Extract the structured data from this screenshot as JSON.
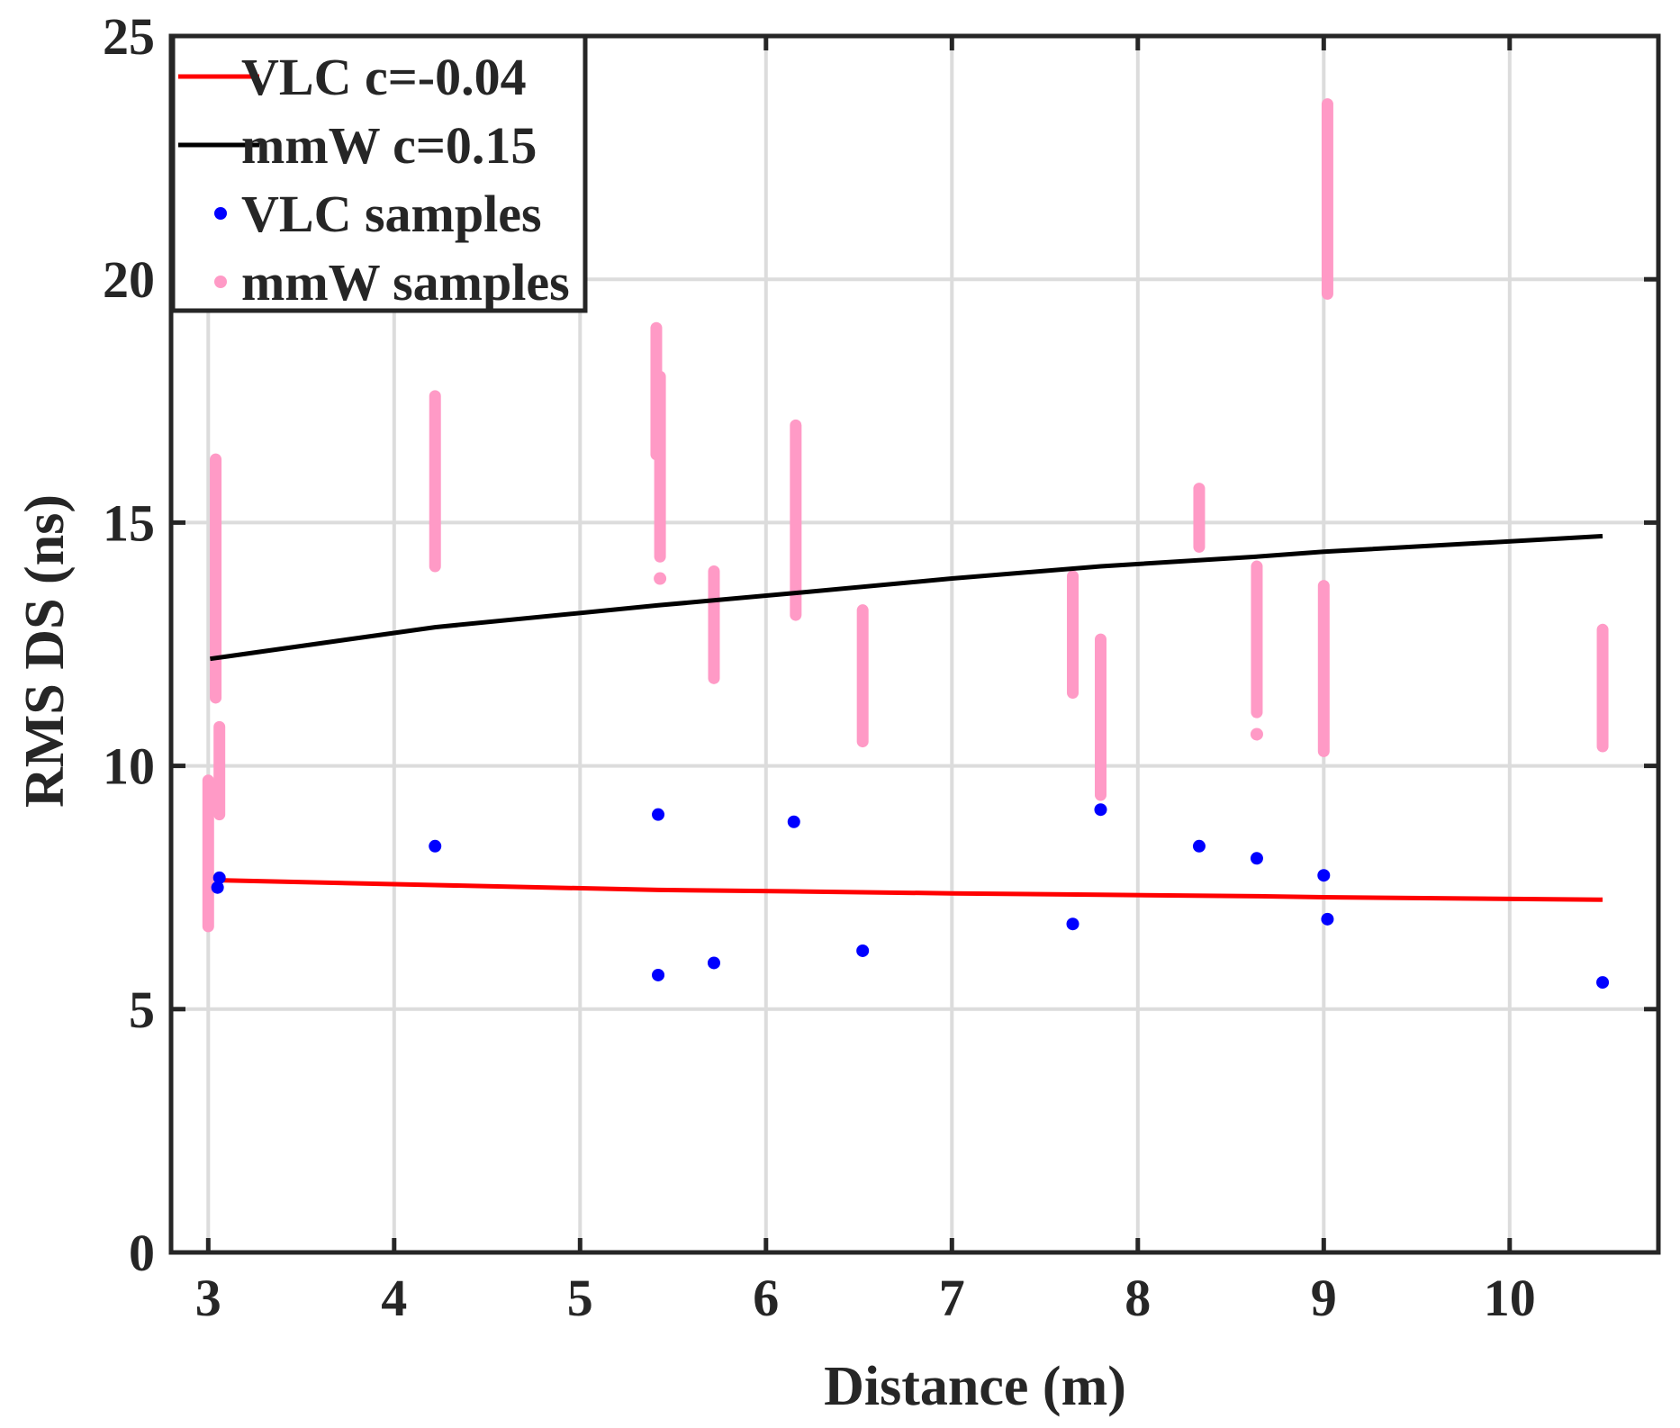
{
  "chart_data": {
    "type": "scatter",
    "xlabel": "Distance (m)",
    "ylabel": "RMS DS (ns)",
    "xlim": [
      2.8,
      10.8
    ],
    "ylim": [
      0,
      25
    ],
    "xticks": [
      3,
      4,
      5,
      6,
      7,
      8,
      9,
      10
    ],
    "yticks": [
      0,
      5,
      10,
      15,
      20,
      25
    ],
    "grid": true,
    "legend_position": "top-left",
    "series": [
      {
        "name": "VLC c=-0.04",
        "kind": "line",
        "color": "#ff0000",
        "x": [
          3.05,
          4.22,
          5.42,
          6.15,
          7.0,
          7.8,
          8.64,
          9.0,
          10.5
        ],
        "y": [
          7.65,
          7.55,
          7.45,
          7.42,
          7.38,
          7.35,
          7.32,
          7.3,
          7.25
        ]
      },
      {
        "name": "mmW c=0.15",
        "kind": "line",
        "color": "#000000",
        "x": [
          3.01,
          4.22,
          5.42,
          6.15,
          7.0,
          7.8,
          8.64,
          9.0,
          10.5
        ],
        "y": [
          12.2,
          12.85,
          13.3,
          13.55,
          13.85,
          14.1,
          14.3,
          14.4,
          14.72
        ]
      },
      {
        "name": "VLC samples",
        "kind": "points",
        "color": "#0000ff",
        "x": [
          3.05,
          3.06,
          4.22,
          5.42,
          5.42,
          5.72,
          6.15,
          6.52,
          7.65,
          7.8,
          8.33,
          8.64,
          9.0,
          9.02,
          10.5
        ],
        "y": [
          7.5,
          7.7,
          8.35,
          9.0,
          5.7,
          5.95,
          8.85,
          6.2,
          6.75,
          9.1,
          8.35,
          8.1,
          7.75,
          6.85,
          5.55
        ]
      },
      {
        "name": "mmW samples",
        "kind": "point-columns",
        "color": "#ff9ac6",
        "columns": [
          {
            "x": 3.0,
            "ymin": 6.7,
            "ymax": 9.7
          },
          {
            "x": 3.04,
            "ymin": 11.4,
            "ymax": 16.3
          },
          {
            "x": 3.06,
            "ymin": 9.0,
            "ymax": 10.8
          },
          {
            "x": 4.22,
            "ymin": 14.1,
            "ymax": 17.6
          },
          {
            "x": 5.41,
            "ymin": 16.4,
            "ymax": 19.0
          },
          {
            "x": 5.43,
            "ymin": 14.3,
            "ymax": 18.0
          },
          {
            "x": 5.43,
            "ymin": 13.85,
            "ymax": 13.85
          },
          {
            "x": 5.72,
            "ymin": 11.8,
            "ymax": 14.0
          },
          {
            "x": 6.16,
            "ymin": 13.1,
            "ymax": 17.0
          },
          {
            "x": 6.52,
            "ymin": 10.5,
            "ymax": 13.2
          },
          {
            "x": 7.65,
            "ymin": 11.5,
            "ymax": 13.9
          },
          {
            "x": 7.8,
            "ymin": 9.4,
            "ymax": 12.6
          },
          {
            "x": 8.33,
            "ymin": 14.5,
            "ymax": 15.7
          },
          {
            "x": 8.64,
            "ymin": 11.1,
            "ymax": 14.1
          },
          {
            "x": 8.64,
            "ymin": 10.65,
            "ymax": 10.65
          },
          {
            "x": 9.0,
            "ymin": 10.3,
            "ymax": 13.7
          },
          {
            "x": 9.02,
            "ymin": 19.7,
            "ymax": 23.6
          },
          {
            "x": 10.5,
            "ymin": 10.4,
            "ymax": 12.8
          }
        ]
      }
    ]
  }
}
